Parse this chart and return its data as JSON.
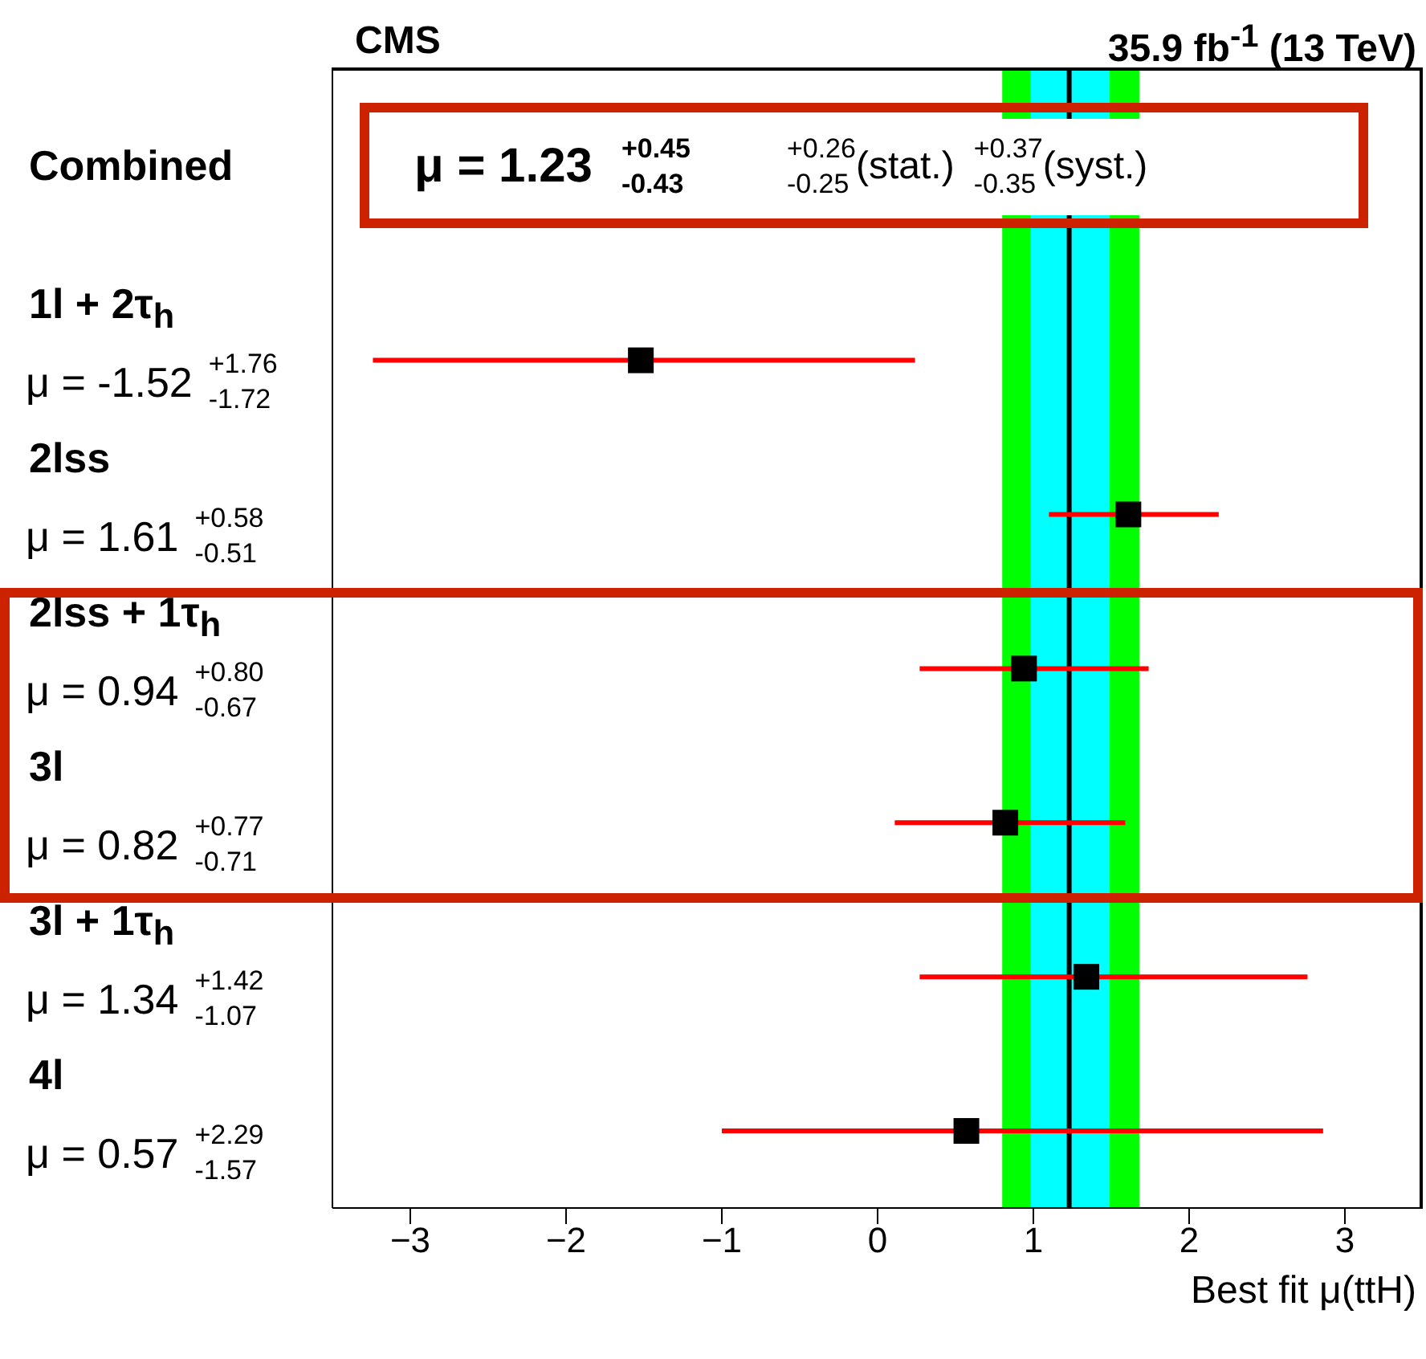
{
  "chart_data": {
    "type": "scatter",
    "orientation": "horizontal",
    "title": "CMS",
    "subtitle": "35.9 fb$^{-1}$ (13 TeV)",
    "xlabel": "Best fit μ(ttH)",
    "categories": [
      "Combined",
      "1l + 2τ$_{h}$",
      "2lss",
      "2lss + 1τ$_{h}$",
      "3l",
      "3l + 1τ$_{h}$",
      "4l"
    ],
    "series": [
      {
        "color": "#000000",
        "values": [
          null,
          -1.52,
          1.61,
          0.94,
          0.82,
          1.34,
          0.57
        ],
        "errors": [
          null,
          [
            -3.24,
            0.24
          ],
          [
            1.1,
            2.19
          ],
          [
            0.27,
            1.74
          ],
          [
            0.11,
            1.59
          ],
          [
            0.27,
            2.76
          ],
          [
            -1.0,
            2.86
          ]
        ],
        "value_labels": [
          null,
          "μ = -1.52",
          "μ = 1.61",
          "μ = 0.94",
          "μ = 0.82",
          "μ = 1.34",
          "μ = 0.57"
        ]
      }
    ],
    "marker": "square",
    "xlim": [
      -3.5,
      3.5
    ],
    "xticks": [
      -3,
      -2,
      -1,
      0,
      1,
      2,
      3
    ],
    "ref_lines": [
      {
        "axis": "x",
        "value": 1.23,
        "color": "#000000"
      }
    ],
    "bands": [
      {
        "axis": "x",
        "from": 0.8,
        "to": 1.68,
        "color": "#00ff00"
      },
      {
        "axis": "x",
        "from": 0.98,
        "to": 1.49,
        "color": "#00ffff"
      }
    ],
    "annotations": [
      "μ = 1.23",
      "+0.45",
      "-0.43",
      "+0.26",
      "-0.25",
      "(stat.)",
      "+0.37",
      "-0.35",
      "(syst.)",
      "+1.76",
      "-1.72",
      "+0.58",
      "-0.51",
      "+0.80",
      "-0.67",
      "+0.77",
      "-0.71",
      "+1.42",
      "-1.07",
      "+2.29",
      "-1.57"
    ],
    "grid": false
  }
}
